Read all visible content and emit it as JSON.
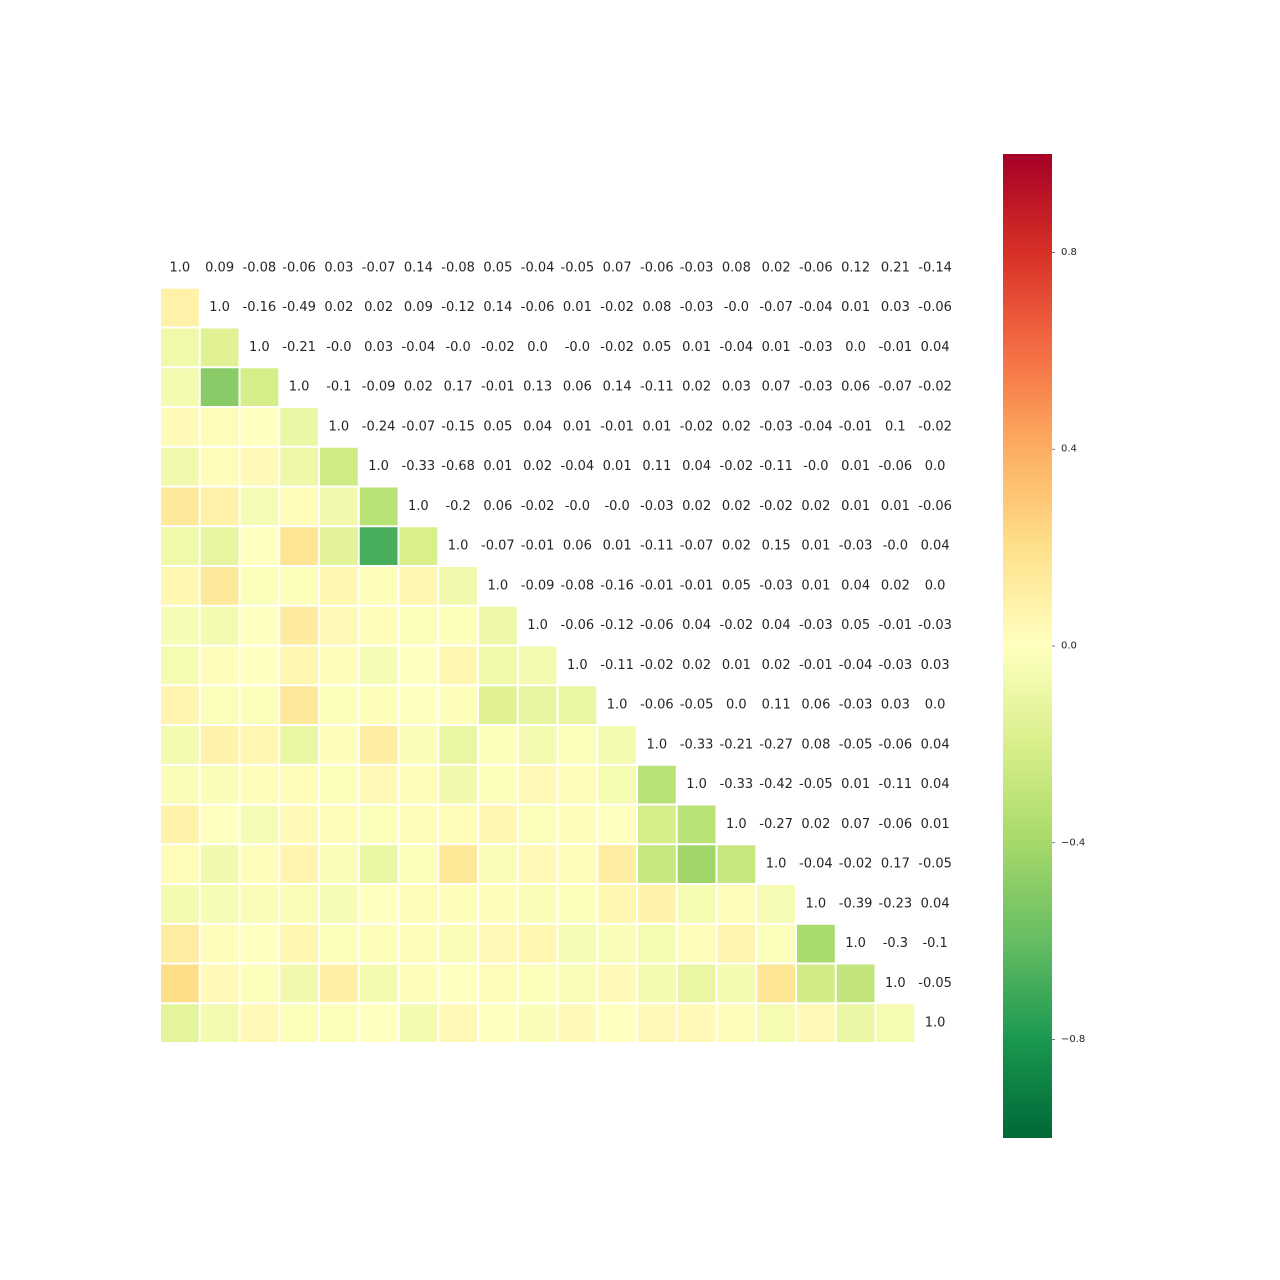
{
  "chart_data": {
    "type": "heatmap",
    "title": "",
    "xlabel": "",
    "ylabel": "",
    "mask": "upper triangle shown as text only; lower triangle shown as colored cells",
    "size": 20,
    "matrix": [
      [
        1.0,
        0.09,
        -0.08,
        -0.06,
        0.03,
        -0.07,
        0.14,
        -0.08,
        0.05,
        -0.04,
        -0.05,
        0.07,
        -0.06,
        -0.03,
        0.08,
        0.02,
        -0.06,
        0.12,
        0.21,
        -0.14
      ],
      [
        0.09,
        1.0,
        -0.16,
        -0.49,
        0.02,
        0.02,
        0.09,
        -0.12,
        0.14,
        -0.06,
        0.01,
        -0.02,
        0.08,
        -0.03,
        -0.0,
        -0.07,
        -0.04,
        0.01,
        0.03,
        -0.06
      ],
      [
        -0.08,
        -0.16,
        1.0,
        -0.21,
        -0.0,
        0.03,
        -0.04,
        -0.0,
        -0.02,
        0.0,
        -0.0,
        -0.02,
        0.05,
        0.01,
        -0.04,
        0.01,
        -0.03,
        0.0,
        -0.01,
        0.04
      ],
      [
        -0.06,
        -0.49,
        -0.21,
        1.0,
        -0.1,
        -0.09,
        0.02,
        0.17,
        -0.01,
        0.13,
        0.06,
        0.14,
        -0.11,
        0.02,
        0.03,
        0.07,
        -0.03,
        0.06,
        -0.07,
        -0.02
      ],
      [
        0.03,
        0.02,
        -0.0,
        -0.1,
        1.0,
        -0.24,
        -0.07,
        -0.15,
        0.05,
        0.04,
        0.01,
        -0.01,
        0.01,
        -0.02,
        0.02,
        -0.03,
        -0.04,
        -0.01,
        0.1,
        -0.02
      ],
      [
        -0.07,
        0.02,
        0.03,
        -0.09,
        -0.24,
        1.0,
        -0.33,
        -0.68,
        0.01,
        0.02,
        -0.04,
        0.01,
        0.11,
        0.04,
        -0.02,
        -0.11,
        -0.0,
        0.01,
        -0.06,
        0.0
      ],
      [
        0.14,
        0.09,
        -0.04,
        0.02,
        -0.07,
        -0.33,
        1.0,
        -0.2,
        0.06,
        -0.02,
        -0.0,
        -0.0,
        -0.03,
        0.02,
        0.02,
        -0.02,
        0.02,
        0.01,
        0.01,
        -0.06
      ],
      [
        -0.08,
        -0.12,
        -0.0,
        0.17,
        -0.15,
        -0.68,
        -0.2,
        1.0,
        -0.07,
        -0.01,
        0.06,
        0.01,
        -0.11,
        -0.07,
        0.02,
        0.15,
        0.01,
        -0.03,
        -0.0,
        0.04
      ],
      [
        0.05,
        0.14,
        -0.02,
        -0.01,
        0.05,
        0.01,
        0.06,
        -0.07,
        1.0,
        -0.09,
        -0.08,
        -0.16,
        -0.01,
        -0.01,
        0.05,
        -0.03,
        0.01,
        0.04,
        0.02,
        0.0
      ],
      [
        -0.04,
        -0.06,
        0.0,
        0.13,
        0.04,
        0.02,
        -0.02,
        -0.01,
        -0.09,
        1.0,
        -0.06,
        -0.12,
        -0.06,
        0.04,
        -0.02,
        0.04,
        -0.03,
        0.05,
        -0.01,
        -0.03
      ],
      [
        -0.05,
        0.01,
        -0.0,
        0.06,
        0.01,
        -0.04,
        -0.0,
        0.06,
        -0.08,
        -0.06,
        1.0,
        -0.11,
        -0.02,
        0.02,
        0.01,
        0.02,
        -0.01,
        -0.04,
        -0.03,
        0.03
      ],
      [
        0.07,
        -0.02,
        -0.02,
        0.14,
        -0.01,
        0.01,
        -0.0,
        0.01,
        -0.16,
        -0.12,
        -0.11,
        1.0,
        -0.06,
        -0.05,
        0.0,
        0.11,
        0.06,
        -0.03,
        0.03,
        0.0
      ],
      [
        -0.06,
        0.08,
        0.05,
        -0.11,
        0.01,
        0.11,
        -0.03,
        -0.11,
        -0.01,
        -0.06,
        -0.02,
        -0.06,
        1.0,
        -0.33,
        -0.21,
        -0.27,
        0.08,
        -0.05,
        -0.06,
        0.04
      ],
      [
        -0.03,
        -0.03,
        0.01,
        0.02,
        -0.02,
        0.04,
        0.02,
        -0.07,
        -0.01,
        0.04,
        0.02,
        -0.05,
        -0.33,
        1.0,
        -0.33,
        -0.42,
        -0.05,
        0.01,
        -0.11,
        0.04
      ],
      [
        0.08,
        -0.0,
        -0.04,
        0.03,
        0.02,
        -0.02,
        0.02,
        0.02,
        0.05,
        -0.02,
        0.01,
        0.0,
        -0.21,
        -0.33,
        1.0,
        -0.27,
        0.02,
        0.07,
        -0.06,
        0.01
      ],
      [
        0.02,
        -0.07,
        0.01,
        0.07,
        -0.03,
        -0.11,
        -0.02,
        0.15,
        -0.03,
        0.04,
        0.02,
        0.11,
        -0.27,
        -0.42,
        -0.27,
        1.0,
        -0.04,
        -0.02,
        0.17,
        -0.05
      ],
      [
        -0.06,
        -0.04,
        -0.03,
        -0.03,
        -0.04,
        -0.0,
        0.02,
        0.01,
        0.01,
        -0.03,
        -0.01,
        0.06,
        0.08,
        -0.05,
        0.02,
        -0.04,
        1.0,
        -0.39,
        -0.23,
        0.04
      ],
      [
        0.12,
        0.01,
        0.0,
        0.06,
        -0.01,
        0.01,
        0.01,
        -0.03,
        0.04,
        0.05,
        -0.04,
        -0.03,
        -0.05,
        0.01,
        0.07,
        -0.02,
        -0.39,
        1.0,
        -0.3,
        -0.1
      ],
      [
        0.21,
        0.03,
        -0.01,
        -0.07,
        0.1,
        -0.06,
        0.01,
        -0.0,
        0.02,
        -0.01,
        -0.03,
        0.03,
        -0.06,
        -0.11,
        -0.06,
        0.17,
        -0.23,
        -0.3,
        1.0,
        -0.05
      ],
      [
        -0.14,
        -0.06,
        0.04,
        -0.02,
        -0.02,
        0.0,
        -0.06,
        0.04,
        0.0,
        -0.03,
        0.03,
        0.0,
        0.04,
        0.04,
        0.01,
        -0.05,
        0.04,
        -0.1,
        -0.05,
        1.0
      ]
    ],
    "colormap": "RdYlGn_r",
    "vmin": -1.0,
    "vmax": 1.0,
    "colorbar": {
      "ticks": [
        0.8,
        0.4,
        0.0,
        -0.4,
        -0.8
      ],
      "tick_labels": [
        "0.8",
        "0.4",
        "0.0",
        "−0.4",
        "−0.8"
      ]
    },
    "grid": false,
    "legend": "colorbar right"
  }
}
